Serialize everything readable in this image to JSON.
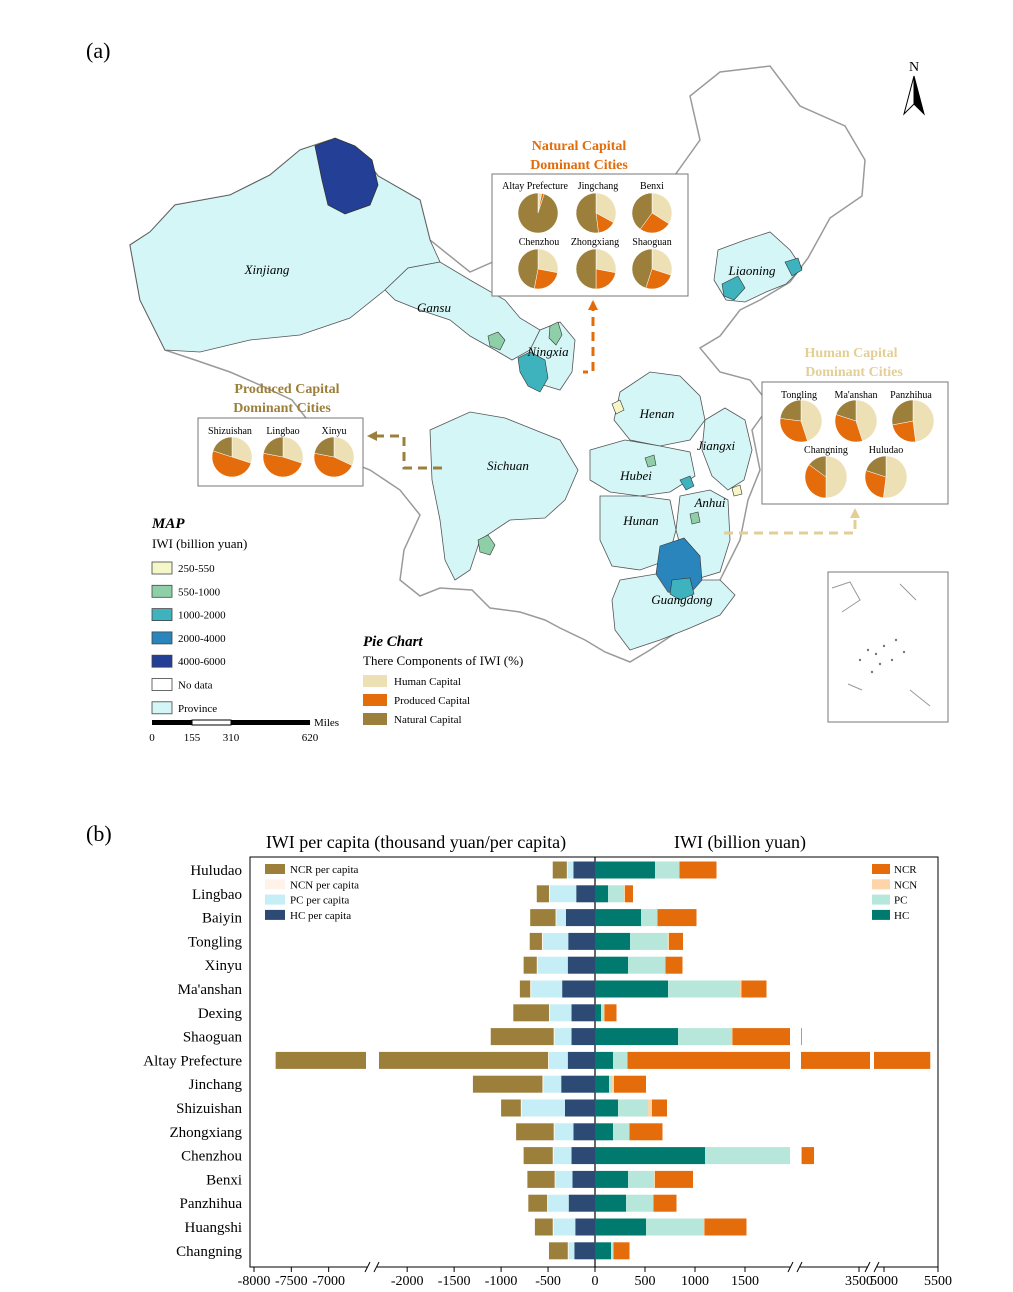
{
  "panel_a": {
    "label": "(a)",
    "north_label": "N",
    "provinces": [
      {
        "name": "Xinjiang"
      },
      {
        "name": "Gansu"
      },
      {
        "name": "Ningxia"
      },
      {
        "name": "Sichuan"
      },
      {
        "name": "Henan"
      },
      {
        "name": "Hubei"
      },
      {
        "name": "Jiangxi"
      },
      {
        "name": "Anhui"
      },
      {
        "name": "Hunan"
      },
      {
        "name": "Guangdong"
      },
      {
        "name": "Liaoning"
      }
    ],
    "natural_box": {
      "title_line1": "Natural Capital",
      "title_line2": "Dominant Cities",
      "color": "#e36c0a",
      "cities": [
        {
          "name": "Altay Prefecture",
          "human": 3,
          "produced": 2,
          "natural": 95
        },
        {
          "name": "Jingchang",
          "human": 33,
          "produced": 15,
          "natural": 52
        },
        {
          "name": "Benxi",
          "human": 34,
          "produced": 26,
          "natural": 40
        },
        {
          "name": "Chenzhou",
          "human": 28,
          "produced": 25,
          "natural": 47
        },
        {
          "name": "Zhongxiang",
          "human": 28,
          "produced": 22,
          "natural": 50
        },
        {
          "name": "Shaoguan",
          "human": 30,
          "produced": 25,
          "natural": 45
        }
      ]
    },
    "produced_box": {
      "title_line1": "Produced Capital",
      "title_line2": "Dominant Cities",
      "color": "#9c7f3b",
      "cities": [
        {
          "name": "Shizuishan",
          "human": 30,
          "produced": 50,
          "natural": 20
        },
        {
          "name": "Lingbao",
          "human": 30,
          "produced": 48,
          "natural": 22
        },
        {
          "name": "Xinyu",
          "human": 32,
          "produced": 46,
          "natural": 22
        }
      ]
    },
    "human_box": {
      "title_line1": "Human Capital",
      "title_line2": "Dominant Cities",
      "color": "#e3cf95",
      "cities": [
        {
          "name": "Tongling",
          "human": 45,
          "produced": 32,
          "natural": 23
        },
        {
          "name": "Ma'anshan",
          "human": 45,
          "produced": 35,
          "natural": 20
        },
        {
          "name": "Panzhihua",
          "human": 48,
          "produced": 24,
          "natural": 28
        },
        {
          "name": "Changning",
          "human": 50,
          "produced": 35,
          "natural": 15
        },
        {
          "name": "Huludao",
          "human": 52,
          "produced": 28,
          "natural": 20
        }
      ]
    },
    "map_legend": {
      "title": "MAP",
      "subtitle": "IWI (billion yuan)",
      "items": [
        {
          "label": "250-550",
          "color": "#f6f7c8"
        },
        {
          "label": "550-1000",
          "color": "#8fcfa8"
        },
        {
          "label": "1000-2000",
          "color": "#3fb3bd"
        },
        {
          "label": "2000-4000",
          "color": "#2b85bd"
        },
        {
          "label": "4000-6000",
          "color": "#233f96"
        },
        {
          "label": "No data",
          "color": "#ffffff"
        },
        {
          "label": "Province",
          "color": "#d5f6f6"
        }
      ]
    },
    "scale_bar": {
      "unit": "Miles",
      "ticks": [
        "0",
        "155",
        "310",
        "620"
      ]
    },
    "pie_legend": {
      "title": "Pie Chart",
      "subtitle": "There Components of IWI (%)",
      "items": [
        {
          "label": "Human Capital",
          "color": "#ede0b5"
        },
        {
          "label": "Produced Capital",
          "color": "#e46c0a"
        },
        {
          "label": "Natural Capital",
          "color": "#9c7f3b"
        }
      ]
    }
  },
  "chart_data": {
    "type": "bar",
    "orientation": "horizontal",
    "panel_label": "(b)",
    "left_title": "IWI per capita (thousand yuan/per capita)",
    "right_title": "IWI (billion yuan)",
    "categories": [
      "Huludao",
      "Lingbao",
      "Baiyin",
      "Tongling",
      "Xinyu",
      "Ma'anshan",
      "Dexing",
      "Shaoguan",
      "Altay Prefecture",
      "Jinchang",
      "Shizuishan",
      "Zhongxiang",
      "Chenzhou",
      "Benxi",
      "Panzhihua",
      "Huangshi",
      "Changning"
    ],
    "per_capita_series": [
      {
        "name": "HC per capita",
        "color": "#2c4a73",
        "values": [
          -230,
          -200,
          -310,
          -285,
          -290,
          -350,
          -250,
          -250,
          -290,
          -360,
          -320,
          -230,
          -250,
          -240,
          -280,
          -210,
          -220
        ]
      },
      {
        "name": "PC per capita",
        "color": "#c5eef7",
        "values": [
          -60,
          -280,
          -100,
          -270,
          -320,
          -330,
          -230,
          -180,
          -200,
          -190,
          -460,
          -200,
          -190,
          -180,
          -220,
          -230,
          -60
        ]
      },
      {
        "name": "NCN per capita",
        "color": "#fff3e9",
        "values": [
          -10,
          -10,
          -10,
          -10,
          -10,
          -10,
          -10,
          -10,
          -10,
          -10,
          -10,
          -10,
          -10,
          -10,
          -10,
          -10,
          -10
        ]
      },
      {
        "name": "NCR per capita",
        "color": "#9c7f3b",
        "values": [
          -150,
          -130,
          -270,
          -130,
          -140,
          -110,
          -380,
          -670,
          -7210,
          -740,
          -210,
          -400,
          -310,
          -290,
          -200,
          -190,
          -200
        ]
      }
    ],
    "total_series": [
      {
        "name": "HC",
        "color": "#007a6e",
        "values": [
          600,
          130,
          460,
          350,
          330,
          730,
          60,
          830,
          180,
          140,
          230,
          180,
          1100,
          330,
          310,
          510,
          160
        ]
      },
      {
        "name": "PC",
        "color": "#b7e6da",
        "values": [
          240,
          160,
          160,
          370,
          370,
          720,
          30,
          540,
          140,
          30,
          300,
          160,
          920,
          260,
          270,
          580,
          20
        ]
      },
      {
        "name": "NCN",
        "color": "#fdd5a8",
        "values": [
          5,
          10,
          5,
          20,
          5,
          15,
          5,
          5,
          5,
          20,
          40,
          5,
          5,
          10,
          5,
          5,
          5
        ]
      },
      {
        "name": "NCR",
        "color": "#e46c0a",
        "values": [
          370,
          80,
          390,
          140,
          170,
          250,
          120,
          650,
          5030,
          320,
          150,
          330,
          400,
          380,
          230,
          420,
          160
        ]
      }
    ],
    "xlim": [
      -8000,
      5500
    ],
    "x_tick_labels": [
      "-8000",
      "-7500",
      "-7000",
      "-2000",
      "-1500",
      "-1000",
      "-500",
      "0",
      "500",
      "1000",
      "1500",
      "3500",
      "5000",
      "5500"
    ]
  }
}
